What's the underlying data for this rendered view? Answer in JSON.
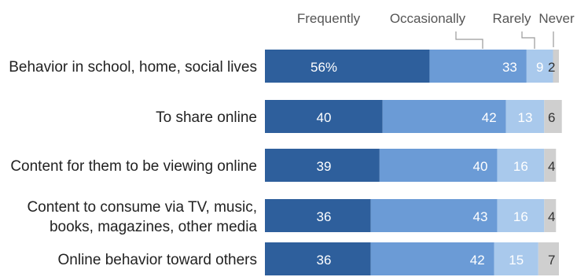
{
  "chart_data": {
    "type": "bar",
    "orientation": "horizontal",
    "stacked": true,
    "categories": [
      "Behavior in school, home, social lives",
      "To share online",
      "Content for them to be viewing online",
      "Content to consume via TV, music, books, magazines, other media",
      "Online behavior toward others"
    ],
    "category_lines": [
      [
        "Behavior in school, home, social lives"
      ],
      [
        "To share online"
      ],
      [
        "Content for them to be viewing online"
      ],
      [
        "Content to consume via TV, music,",
        "books, magazines, other media"
      ],
      [
        "Online behavior toward others"
      ]
    ],
    "series": [
      {
        "name": "Frequently",
        "values": [
          56,
          40,
          39,
          36,
          36
        ],
        "labels": [
          "56%",
          "40",
          "39",
          "36",
          "36"
        ],
        "color": "#2e5f9c",
        "text_color": "#ffffff"
      },
      {
        "name": "Occasionally",
        "values": [
          33,
          42,
          40,
          43,
          42
        ],
        "labels": [
          "33",
          "42",
          "40",
          "43",
          "42"
        ],
        "color": "#6b9bd6",
        "text_color": "#ffffff"
      },
      {
        "name": "Rarely",
        "values": [
          9,
          13,
          16,
          16,
          15
        ],
        "labels": [
          "9",
          "13",
          "16",
          "16",
          "15"
        ],
        "color": "#a9c9ec",
        "text_color": "#ffffff"
      },
      {
        "name": "Never",
        "values": [
          2,
          6,
          4,
          4,
          7
        ],
        "labels": [
          "2",
          "6",
          "4",
          "4",
          "7"
        ],
        "color": "#cfcfcf",
        "text_color": "#333333"
      }
    ],
    "xlim": [
      0,
      100
    ],
    "legend": "top",
    "grid": false
  }
}
